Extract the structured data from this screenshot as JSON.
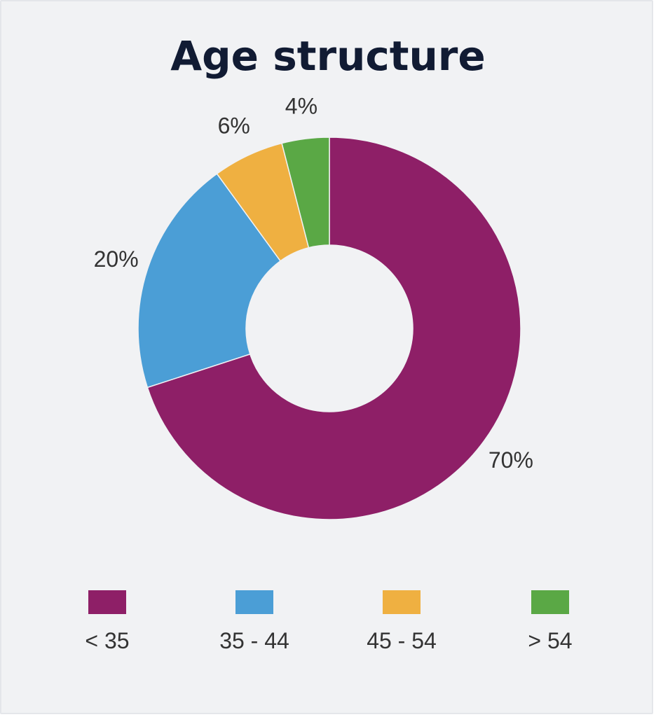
{
  "chart_data": {
    "type": "pie",
    "title": "Age structure",
    "donut": true,
    "legend_position": "bottom",
    "categories": [
      "< 35",
      "35 - 44",
      "45 - 54",
      "> 54"
    ],
    "values": [
      70,
      20,
      6,
      4
    ],
    "labels": [
      "70%",
      "20%",
      "6%",
      "4%"
    ],
    "colors": [
      "#8e1f67",
      "#4b9ed6",
      "#efb041",
      "#5aa845"
    ]
  }
}
